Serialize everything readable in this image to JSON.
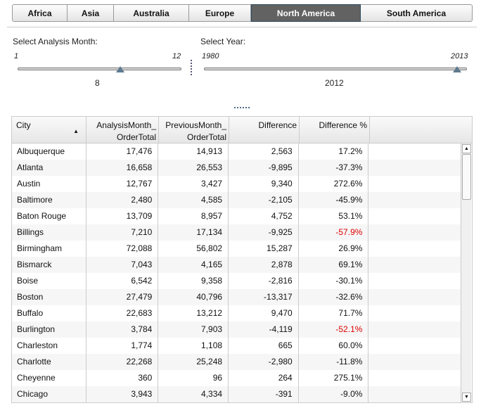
{
  "tabs": [
    {
      "label": "Africa"
    },
    {
      "label": "Asia"
    },
    {
      "label": "Australia"
    },
    {
      "label": "Europe"
    },
    {
      "label": "North America",
      "active": true
    },
    {
      "label": "South America"
    }
  ],
  "month_slider": {
    "label": "Select Analysis Month:",
    "min": "1",
    "max": "12",
    "value": "8"
  },
  "year_slider": {
    "label": "Select Year:",
    "min": "1980",
    "max": "2013",
    "value": "2012"
  },
  "table": {
    "headers": [
      "City",
      "AnalysisMonth_\nOrderTotal",
      "PreviousMonth_\nOrderTotal",
      "Difference",
      "Difference %"
    ],
    "header_lines": [
      [
        "City"
      ],
      [
        "AnalysisMonth_",
        "OrderTotal"
      ],
      [
        "PreviousMonth_",
        "OrderTotal"
      ],
      [
        "Difference"
      ],
      [
        "Difference %"
      ]
    ],
    "rows": [
      [
        "Albuquerque",
        "17,476",
        "14,913",
        "2,563",
        "17.2%"
      ],
      [
        "Atlanta",
        "16,658",
        "26,553",
        "-9,895",
        "-37.3%"
      ],
      [
        "Austin",
        "12,767",
        "3,427",
        "9,340",
        "272.6%"
      ],
      [
        "Baltimore",
        "2,480",
        "4,585",
        "-2,105",
        "-45.9%"
      ],
      [
        "Baton Rouge",
        "13,709",
        "8,957",
        "4,752",
        "53.1%"
      ],
      [
        "Billings",
        "7,210",
        "17,134",
        "-9,925",
        "-57.9%"
      ],
      [
        "Birmingham",
        "72,088",
        "56,802",
        "15,287",
        "26.9%"
      ],
      [
        "Bismarck",
        "7,043",
        "4,165",
        "2,878",
        "69.1%"
      ],
      [
        "Boise",
        "6,542",
        "9,358",
        "-2,816",
        "-30.1%"
      ],
      [
        "Boston",
        "27,479",
        "40,796",
        "-13,317",
        "-32.6%"
      ],
      [
        "Buffalo",
        "22,683",
        "13,212",
        "9,470",
        "71.7%"
      ],
      [
        "Burlington",
        "3,784",
        "7,903",
        "-4,119",
        "-52.1%"
      ],
      [
        "Charleston",
        "1,774",
        "1,108",
        "665",
        "60.0%"
      ],
      [
        "Charlotte",
        "22,268",
        "25,248",
        "-2,980",
        "-11.8%"
      ],
      [
        "Cheyenne",
        "360",
        "96",
        "264",
        "275.1%"
      ],
      [
        "Chicago",
        "3,943",
        "4,334",
        "-391",
        "-9.0%"
      ]
    ],
    "highlight_rows": [
      5,
      11
    ],
    "highlight_color": "#dd0000"
  }
}
